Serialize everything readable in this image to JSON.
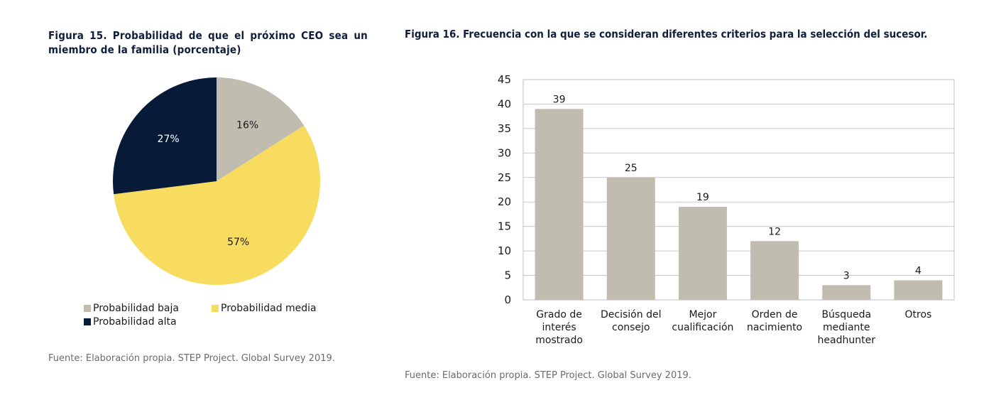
{
  "figure15": {
    "title": "Figura 15. Probabilidad de que el próximo CEO sea un miembro de la familia (porcentaje)",
    "source": "Fuente: Elaboración propia. STEP Project. Global Survey 2019."
  },
  "figure16": {
    "title": "Figura 16. Frecuencia con la que se consideran diferentes criterios para la selección del sucesor.",
    "source": "Fuente: Elaboración propia. STEP Project. Global Survey 2019."
  },
  "chart_data": [
    {
      "type": "pie",
      "title": "Figura 15. Probabilidad de que el próximo CEO sea un miembro de la familia (porcentaje)",
      "labels": [
        "Probabilidad baja",
        "Probabilidad media",
        "Probabilidad alta"
      ],
      "values": [
        16,
        57,
        27
      ],
      "data_labels": [
        "16%",
        "57%",
        "27%"
      ],
      "colors": [
        "#c0bcb0",
        "#f7dc5f",
        "#071a38"
      ],
      "legend_position": "bottom"
    },
    {
      "type": "bar",
      "title": "Figura 16. Frecuencia con la que se consideran diferentes criterios para la selección del sucesor.",
      "categories": [
        [
          "Grado de",
          "interés",
          "mostrado"
        ],
        [
          "Decisión del",
          "consejo"
        ],
        [
          "Mejor",
          "cualificación"
        ],
        [
          "Orden de",
          "nacimiento"
        ],
        [
          "Búsqueda",
          "mediante",
          "headhunter"
        ],
        [
          "Otros"
        ]
      ],
      "values": [
        39,
        25,
        19,
        12,
        3,
        4
      ],
      "ylim": [
        0,
        45
      ],
      "yticks": [
        0,
        5,
        10,
        15,
        20,
        25,
        30,
        35,
        40,
        45
      ],
      "grid": true,
      "bar_color": "#c0bcb0",
      "xlabel": "",
      "ylabel": ""
    }
  ]
}
